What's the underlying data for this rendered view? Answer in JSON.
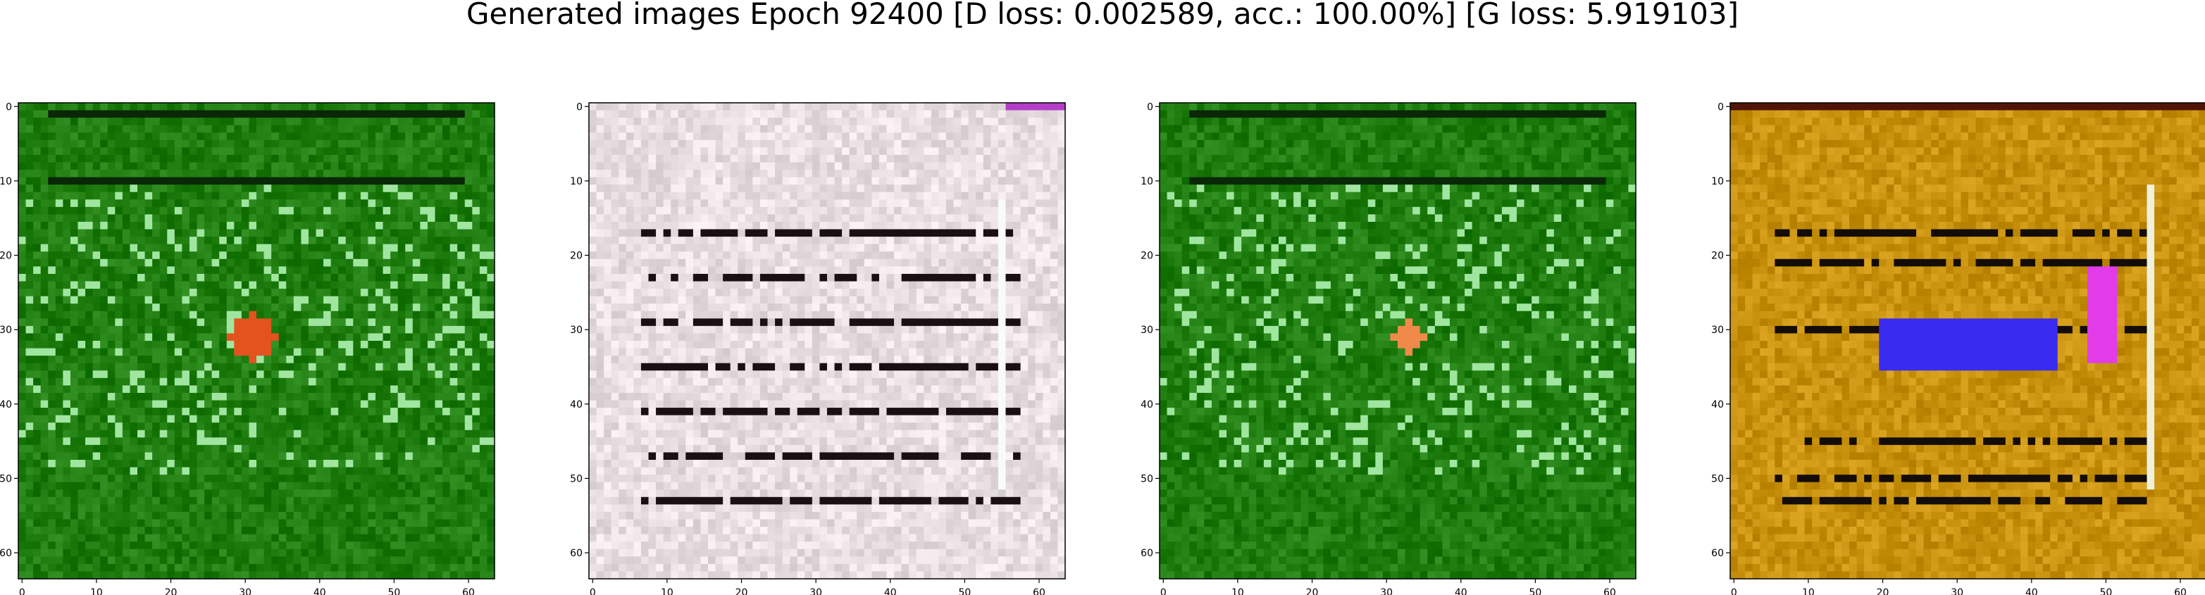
{
  "title": "Generated images Epoch 92400 [D loss: 0.002589, acc.: 100.00%] [G loss: 5.919103]",
  "chart_data": {
    "type": "heatmap",
    "grid": false,
    "subplots": [
      {
        "xlim": [
          0,
          63
        ],
        "ylim": [
          63,
          0
        ],
        "xticks": [
          0,
          10,
          20,
          30,
          40,
          50,
          60
        ],
        "yticks": [
          0,
          10,
          20,
          30,
          40,
          50,
          60
        ],
        "base_color": "#1f7d10",
        "content": "green field with pale-green character strokes and a red-orange blob near x=31, y=31",
        "accent_color": "#e2531e"
      },
      {
        "xlim": [
          0,
          63
        ],
        "ylim": [
          63,
          0
        ],
        "xticks": [
          0,
          10,
          20,
          30,
          40,
          50,
          60
        ],
        "yticks": [
          0,
          10,
          20,
          30,
          40,
          50,
          60
        ],
        "base_color": "#e8dfe2",
        "content": "pale pink-grey field with dark horizontal stripes",
        "accent_color": "#1a1014"
      },
      {
        "xlim": [
          0,
          63
        ],
        "ylim": [
          63,
          0
        ],
        "xticks": [
          0,
          10,
          20,
          30,
          40,
          50,
          60
        ],
        "yticks": [
          0,
          10,
          20,
          30,
          40,
          50,
          60
        ],
        "base_color": "#1f7d10",
        "content": "green field with pale-green character strokes and a small orange blob near x=33, y=31",
        "accent_color": "#f08a4a"
      },
      {
        "xlim": [
          0,
          63
        ],
        "ylim": [
          63,
          0
        ],
        "xticks": [
          0,
          10,
          20,
          30,
          40,
          50,
          60
        ],
        "yticks": [
          0,
          10,
          20,
          30,
          40,
          50,
          60
        ],
        "base_color": "#c8920f",
        "content": "golden-brown field with dark stripes, a blue rectangle near x=20-43, y=29-35 and a magenta patch near x=48-51",
        "accent_color": "#3a2bf0",
        "accent_color_2": "#e23ce8"
      }
    ]
  }
}
